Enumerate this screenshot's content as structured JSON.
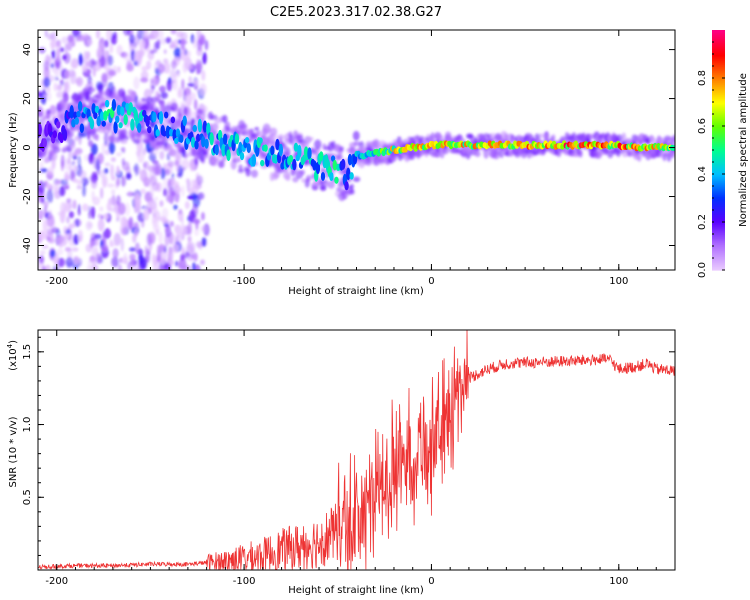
{
  "title": "C2E5.2023.317.02.38.G27",
  "chart_data": [
    {
      "type": "heatmap",
      "title": "",
      "xlabel": "Height of straight line (km)",
      "ylabel": "Frequency (Hz)",
      "xlim": [
        -210,
        130
      ],
      "ylim": [
        -50,
        48
      ],
      "x_ticks": [
        -200,
        -100,
        0,
        100
      ],
      "y_ticks": [
        -40,
        -20,
        0,
        20,
        40
      ],
      "colorbar": {
        "label": "Normalized spectral amplitude",
        "range": [
          0,
          1
        ],
        "ticks": [
          0.0,
          0.2,
          0.4,
          0.6,
          0.8
        ],
        "tick_labels": [
          "0.0",
          "0.2",
          "0.4",
          "0.6",
          "0.8"
        ],
        "colormap": [
          "#e8c8ff",
          "#b070ff",
          "#5a00ff",
          "#0030ff",
          "#00c0ff",
          "#00ff90",
          "#60ff00",
          "#ffff00",
          "#ff8000",
          "#ff0000",
          "#ff0080"
        ]
      },
      "ridge": {
        "x": [
          -205,
          -190,
          -180,
          -170,
          -160,
          -150,
          -140,
          -130,
          -120,
          -110,
          -100,
          -90,
          -80,
          -70,
          -60,
          -50,
          -45,
          -40,
          -36,
          -30,
          -20,
          -10,
          0,
          20,
          40,
          60,
          80,
          100,
          110,
          120,
          130
        ],
        "frequency": [
          5,
          12,
          14,
          13,
          13,
          10,
          8,
          6,
          4,
          2,
          0,
          -2,
          -3,
          -5,
          -7,
          -9,
          -12,
          -3,
          -3,
          -2,
          -1,
          0,
          1,
          1,
          1,
          1,
          1,
          1,
          0,
          0,
          0
        ],
        "amplitude": [
          0.2,
          0.35,
          0.45,
          0.5,
          0.45,
          0.4,
          0.35,
          0.4,
          0.45,
          0.45,
          0.45,
          0.45,
          0.45,
          0.45,
          0.45,
          0.5,
          0.35,
          0.45,
          0.5,
          0.55,
          0.75,
          0.8,
          0.8,
          0.75,
          0.8,
          0.85,
          0.9,
          0.85,
          0.8,
          0.75,
          0.6
        ]
      },
      "noise_x_range": [
        -210,
        -120
      ]
    },
    {
      "type": "line",
      "title": "",
      "xlabel": "Height of straight line (km)",
      "ylabel": "SNR (10 * v/v)",
      "y_multiplier_label": "(x10",
      "y_multiplier_exp": "4",
      "y_multiplier_close": ")",
      "xlim": [
        -210,
        130
      ],
      "ylim": [
        0,
        1.65
      ],
      "x_ticks": [
        -200,
        -100,
        0,
        100
      ],
      "y_ticks": [
        0.5,
        1.0,
        1.5
      ],
      "y_tick_labels": [
        "0.5",
        "1.0",
        "1.5"
      ],
      "color": "#ee3333",
      "series": [
        {
          "x": [
            -210,
            -190,
            -170,
            -150,
            -130,
            -120,
            -110,
            -100,
            -90,
            -80,
            -70,
            -60,
            -50,
            -45,
            -40,
            -35,
            -30,
            -25,
            -20,
            -15,
            -10,
            -5,
            0,
            5,
            10,
            15,
            20,
            30,
            40,
            60,
            80,
            95,
            100,
            110,
            115,
            120,
            130
          ],
          "values": [
            0.02,
            0.03,
            0.03,
            0.04,
            0.04,
            0.05,
            0.06,
            0.08,
            0.1,
            0.14,
            0.16,
            0.2,
            0.26,
            0.3,
            0.35,
            0.4,
            0.5,
            0.6,
            0.7,
            0.75,
            0.8,
            0.85,
            0.85,
            0.95,
            1.1,
            1.25,
            1.32,
            1.38,
            1.42,
            1.43,
            1.44,
            1.45,
            1.38,
            1.4,
            1.42,
            1.38,
            1.37
          ]
        }
      ]
    }
  ]
}
